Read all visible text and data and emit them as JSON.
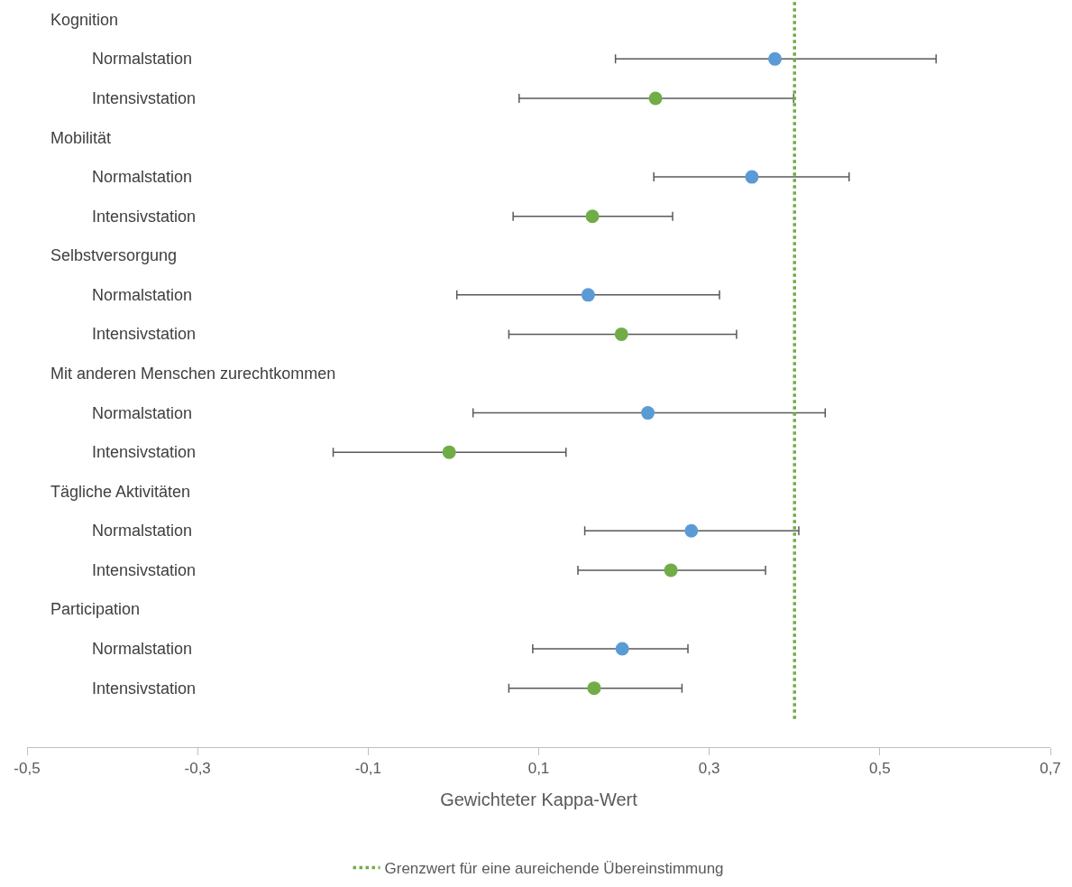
{
  "chart_data": {
    "type": "scatter",
    "orientation": "horizontal",
    "xlabel": "Gewichteter Kappa-Wert",
    "categories": [
      "Kognition",
      "Normalstation",
      "Intensivstation",
      "Mobilität",
      "Normalstation",
      "Intensivstation",
      "Selbstversorgung",
      "Normalstation",
      "Intensivstation",
      "Mit anderen Menschen zurechtkommen",
      "Normalstation",
      "Intensivstation",
      "Tägliche Aktivitäten",
      "Normalstation",
      "Intensivstation",
      "Participation",
      "Normalstation",
      "Intensivstation"
    ],
    "series": [
      {
        "color": "#5b9bd5",
        "values": [
          null,
          0.377,
          null,
          null,
          0.35,
          null,
          null,
          0.158,
          null,
          null,
          0.228,
          null,
          null,
          0.279,
          null,
          null,
          0.198,
          null
        ],
        "errors": [
          null,
          [
            0.19,
            0.566
          ],
          null,
          null,
          [
            0.235,
            0.464
          ],
          null,
          null,
          [
            0.004,
            0.312
          ],
          null,
          null,
          [
            0.023,
            0.436
          ],
          null,
          null,
          [
            0.154,
            0.405
          ],
          null,
          null,
          [
            0.093,
            0.275
          ],
          null
        ]
      },
      {
        "color": "#70ad47",
        "values": [
          null,
          null,
          0.237,
          null,
          null,
          0.163,
          null,
          null,
          0.197,
          null,
          null,
          -0.005,
          null,
          null,
          0.255,
          null,
          null,
          0.165
        ],
        "errors": [
          null,
          null,
          [
            0.077,
            0.399
          ],
          null,
          null,
          [
            0.07,
            0.257
          ],
          null,
          null,
          [
            0.065,
            0.332
          ],
          null,
          null,
          [
            -0.141,
            0.132
          ],
          null,
          null,
          [
            0.146,
            0.366
          ],
          null,
          null,
          [
            0.065,
            0.268
          ]
        ]
      }
    ],
    "xlim": [
      -0.5,
      0.7
    ],
    "xticks": [
      {
        "value": -0.5,
        "label": "-0,5"
      },
      {
        "value": -0.3,
        "label": "-0,3"
      },
      {
        "value": -0.1,
        "label": "-0,1"
      },
      {
        "value": 0.1,
        "label": "0,1"
      },
      {
        "value": 0.3,
        "label": "0,3"
      },
      {
        "value": 0.5,
        "label": "0,5"
      },
      {
        "value": 0.7,
        "label": "0,7"
      }
    ],
    "ref_lines": [
      {
        "axis": "x",
        "value": 0.4,
        "label": "Grenzwert für eine aureichende Übereinstimmung",
        "color": "#70ad47",
        "line_style": "dotted"
      }
    ],
    "marker": "circle",
    "grid": false,
    "legend": "bottom"
  }
}
